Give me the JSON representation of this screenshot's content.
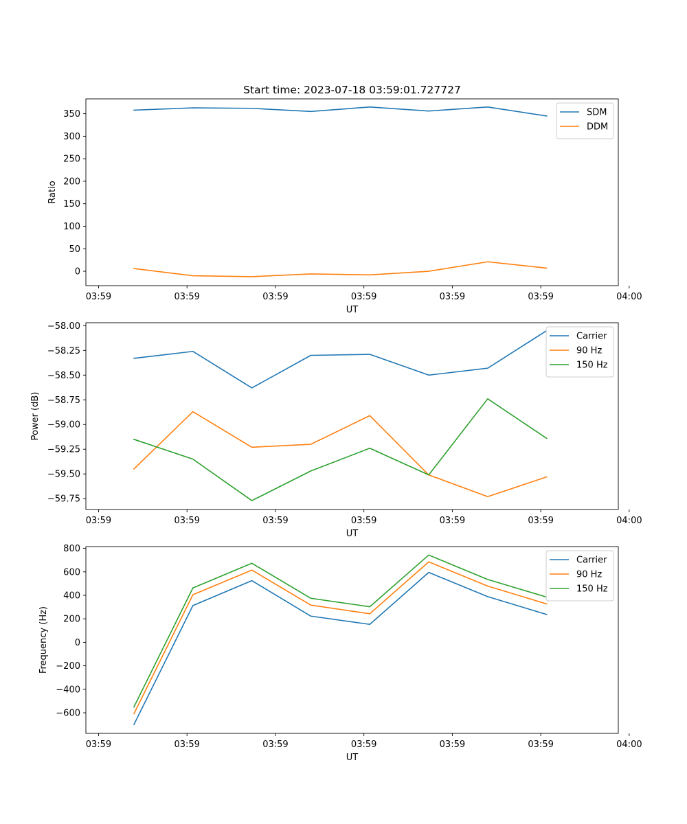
{
  "title": "Start time: 2023-07-18 03:59:01.727727",
  "chart_data": [
    {
      "type": "line",
      "title": "Start time: 2023-07-18 03:59:01.727727",
      "xlabel": "UT",
      "ylabel": "Ratio",
      "x_tick_labels": [
        "03:59",
        "03:59",
        "03:59",
        "03:59",
        "03:59",
        "03:59",
        "04:00"
      ],
      "x": [
        1,
        2,
        3,
        4,
        5,
        6,
        7,
        8
      ],
      "xlim": [
        0.185,
        9.215
      ],
      "x_ticks": [
        0.4,
        1.9,
        3.4,
        4.9,
        6.4,
        7.9,
        9.4
      ],
      "ylim": [
        -32,
        383
      ],
      "y_ticks": [
        0,
        50,
        100,
        150,
        200,
        250,
        300,
        350
      ],
      "y_tick_labels": [
        "0",
        "50",
        "100",
        "150",
        "200",
        "250",
        "300",
        "350"
      ],
      "legend": "top-right",
      "series": [
        {
          "name": "SDM",
          "color": "#1f77b4",
          "values": [
            358,
            363,
            362,
            355,
            365,
            356,
            365,
            345
          ]
        },
        {
          "name": "DDM",
          "color": "#ff7f0e",
          "values": [
            6,
            -10,
            -12,
            -6,
            -8,
            0,
            21,
            7
          ]
        }
      ]
    },
    {
      "type": "line",
      "title": "",
      "xlabel": "UT",
      "ylabel": "Power (dB)",
      "x_tick_labels": [
        "03:59",
        "03:59",
        "03:59",
        "03:59",
        "03:59",
        "03:59",
        "04:00"
      ],
      "x": [
        1,
        2,
        3,
        4,
        5,
        6,
        7,
        8
      ],
      "xlim": [
        0.185,
        9.215
      ],
      "x_ticks": [
        0.4,
        1.9,
        3.4,
        4.9,
        6.4,
        7.9,
        9.4
      ],
      "ylim": [
        -59.86,
        -57.97
      ],
      "y_ticks": [
        -59.75,
        -59.5,
        -59.25,
        -59.0,
        -58.75,
        -58.5,
        -58.25,
        -58.0
      ],
      "y_tick_labels": [
        "−59.75",
        "−59.50",
        "−59.25",
        "−59.00",
        "−58.75",
        "−58.50",
        "−58.25",
        "−58.00"
      ],
      "legend": "top-right",
      "series": [
        {
          "name": "Carrier",
          "color": "#1f77b4",
          "values": [
            -58.33,
            -58.26,
            -58.63,
            -58.3,
            -58.29,
            -58.5,
            -58.43,
            -58.05
          ]
        },
        {
          "name": "90 Hz",
          "color": "#ff7f0e",
          "values": [
            -59.45,
            -58.87,
            -59.23,
            -59.2,
            -58.91,
            -59.51,
            -59.73,
            -59.53
          ]
        },
        {
          "name": "150 Hz",
          "color": "#2ca02c",
          "values": [
            -59.15,
            -59.35,
            -59.77,
            -59.47,
            -59.24,
            -59.51,
            -58.74,
            -59.14
          ]
        }
      ]
    },
    {
      "type": "line",
      "title": "",
      "xlabel": "UT",
      "ylabel": "Frequency (Hz)",
      "x_tick_labels": [
        "03:59",
        "03:59",
        "03:59",
        "03:59",
        "03:59",
        "03:59",
        "04:00"
      ],
      "x": [
        1,
        2,
        3,
        4,
        5,
        6,
        7,
        8
      ],
      "xlim": [
        0.185,
        9.215
      ],
      "x_ticks": [
        0.4,
        1.9,
        3.4,
        4.9,
        6.4,
        7.9,
        9.4
      ],
      "ylim": [
        -775,
        815
      ],
      "y_ticks": [
        -600,
        -400,
        -200,
        0,
        200,
        400,
        600,
        800
      ],
      "y_tick_labels": [
        "−600",
        "−400",
        "−200",
        "0",
        "200",
        "400",
        "600",
        "800"
      ],
      "legend": "top-right",
      "series": [
        {
          "name": "Carrier",
          "color": "#1f77b4",
          "values": [
            -700,
            313,
            525,
            223,
            153,
            595,
            389,
            237
          ]
        },
        {
          "name": "90 Hz",
          "color": "#ff7f0e",
          "values": [
            -608,
            405,
            615,
            317,
            243,
            685,
            479,
            327
          ]
        },
        {
          "name": "150 Hz",
          "color": "#2ca02c",
          "values": [
            -550,
            463,
            673,
            375,
            303,
            743,
            535,
            385
          ]
        }
      ]
    }
  ]
}
